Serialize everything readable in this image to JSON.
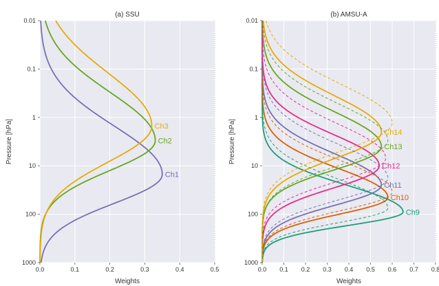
{
  "chart_data": [
    {
      "type": "line",
      "title": "(a) SSU",
      "xlabel": "Weights",
      "ylabel": "Pressure [hPa]",
      "xlim": [
        0,
        0.5
      ],
      "ylim": [
        1000,
        0.01
      ],
      "yscale": "log",
      "xticks": [
        "0.0",
        "0.1",
        "0.2",
        "0.3",
        "0.4",
        "0.5"
      ],
      "yticks": [
        {
          "value": 0.01,
          "label": "0.01"
        },
        {
          "value": 0.1,
          "label": "0.1"
        },
        {
          "value": 1,
          "label": "1"
        },
        {
          "value": 10,
          "label": "10"
        },
        {
          "value": 100,
          "label": "100"
        },
        {
          "value": 1000,
          "label": "1000"
        }
      ],
      "grid": true,
      "background": "#e9e9f1",
      "series": [
        {
          "name": "Ch1",
          "color": "#7570b3",
          "peak_pressure": 15,
          "peak_weight": 0.35,
          "sigma_lower": 0.6,
          "sigma_upper": 1.0,
          "dashed": false
        },
        {
          "name": "Ch2",
          "color": "#66a61e",
          "peak_pressure": 3.0,
          "peak_weight": 0.33,
          "sigma_lower": 0.62,
          "sigma_upper": 1.0,
          "dashed": false
        },
        {
          "name": "Ch3",
          "color": "#e6ab02",
          "peak_pressure": 1.5,
          "peak_weight": 0.32,
          "sigma_lower": 0.75,
          "sigma_upper": 1.1,
          "dashed": false
        }
      ]
    },
    {
      "type": "line",
      "title": "(b) AMSU-A",
      "xlabel": "Weights",
      "ylabel": "Pressure [hPa]",
      "xlim": [
        0,
        0.8
      ],
      "ylim": [
        1000,
        0.01
      ],
      "yscale": "log",
      "xticks": [
        "0.0",
        "0.1",
        "0.2",
        "0.3",
        "0.4",
        "0.5",
        "0.6",
        "0.7",
        "0.8"
      ],
      "yticks": [
        {
          "value": 0.01,
          "label": "0.01"
        },
        {
          "value": 0.1,
          "label": "0.1"
        },
        {
          "value": 1,
          "label": "1"
        },
        {
          "value": 10,
          "label": "10"
        },
        {
          "value": 100,
          "label": "100"
        },
        {
          "value": 1000,
          "label": "1000"
        }
      ],
      "grid": true,
      "background": "#e9e9f1",
      "series": [
        {
          "name": "Ch9",
          "color": "#1b9e77",
          "peak_pressure": 90,
          "peak_weight": 0.65,
          "sigma_lower": 0.28,
          "sigma_upper": 0.55,
          "dashed": false
        },
        {
          "name": "Ch10",
          "color": "#d95f02",
          "peak_pressure": 45,
          "peak_weight": 0.58,
          "sigma_lower": 0.35,
          "sigma_upper": 0.6,
          "dashed": false
        },
        {
          "name": "Ch11",
          "color": "#7570b3",
          "peak_pressure": 25,
          "peak_weight": 0.55,
          "sigma_lower": 0.42,
          "sigma_upper": 0.65,
          "dashed": false
        },
        {
          "name": "Ch12",
          "color": "#e7298a",
          "peak_pressure": 10,
          "peak_weight": 0.54,
          "sigma_lower": 0.46,
          "sigma_upper": 0.65,
          "dashed": false
        },
        {
          "name": "Ch13",
          "color": "#66a61e",
          "peak_pressure": 4,
          "peak_weight": 0.55,
          "sigma_lower": 0.48,
          "sigma_upper": 0.72,
          "dashed": false
        },
        {
          "name": "Ch14",
          "color": "#e6ab02",
          "peak_pressure": 2,
          "peak_weight": 0.55,
          "sigma_lower": 0.55,
          "sigma_upper": 0.75,
          "dashed": false
        },
        {
          "name": "",
          "color": "#1b9e77",
          "peak_pressure": 75,
          "peak_weight": 0.58,
          "sigma_lower": 0.3,
          "sigma_upper": 0.6,
          "dashed": true
        },
        {
          "name": "",
          "color": "#d95f02",
          "peak_pressure": 35,
          "peak_weight": 0.6,
          "sigma_lower": 0.38,
          "sigma_upper": 0.65,
          "dashed": true
        },
        {
          "name": "",
          "color": "#7570b3",
          "peak_pressure": 18,
          "peak_weight": 0.58,
          "sigma_lower": 0.45,
          "sigma_upper": 0.7,
          "dashed": true
        },
        {
          "name": "",
          "color": "#e7298a",
          "peak_pressure": 7,
          "peak_weight": 0.57,
          "sigma_lower": 0.48,
          "sigma_upper": 0.72,
          "dashed": true
        },
        {
          "name": "",
          "color": "#66a61e",
          "peak_pressure": 3,
          "peak_weight": 0.58,
          "sigma_lower": 0.52,
          "sigma_upper": 0.76,
          "dashed": true
        },
        {
          "name": "",
          "color": "#e6ab02",
          "peak_pressure": 1.3,
          "peak_weight": 0.6,
          "sigma_lower": 0.58,
          "sigma_upper": 0.8,
          "dashed": true
        }
      ]
    }
  ]
}
